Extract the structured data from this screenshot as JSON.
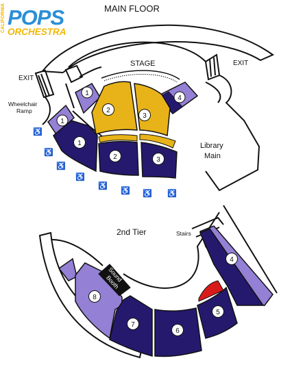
{
  "logo": {
    "california": "CALIFORNIA",
    "pops": "POPS",
    "orchestra": "ORCHESTRA"
  },
  "labels": {
    "main_floor": "MAIN FLOOR",
    "stage": "STAGE",
    "exit_left": "EXIT",
    "exit_right": "EXIT",
    "wheelchair_line1": "Wheelchair",
    "wheelchair_line2": "Ramp",
    "library_line1": "Library",
    "library_line2": "Main",
    "second_tier": "2nd Tier",
    "stairs": "Stairs",
    "sound_booth_line1": "Sound",
    "sound_booth_line2": "Booth"
  },
  "sections": {
    "mf_lav_1_upper": "1",
    "mf_lav_1_lower": "1",
    "mf_lav_4": "4",
    "mf_gold_2": "2",
    "mf_gold_3": "3",
    "mf_navy_1": "1",
    "mf_navy_2": "2",
    "mf_navy_3": "3",
    "t2_navy_4": "4",
    "t2_navy_5": "5",
    "t2_navy_6": "6",
    "t2_navy_7": "7",
    "t2_lav_8": "8"
  },
  "colors": {
    "navy": "#25196e",
    "gold": "#e8b319",
    "lavender": "#9480d4",
    "red": "#d91a1a",
    "logo_blue": "#2a8fd6",
    "logo_gold": "#f2b705"
  },
  "icons": {
    "wheelchair": "♿"
  }
}
